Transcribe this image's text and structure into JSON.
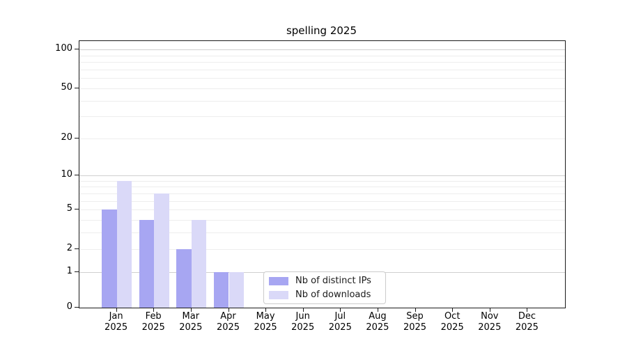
{
  "title": "spelling 2025",
  "legend": {
    "items": [
      {
        "label": "Nb of distinct IPs",
        "color": "#a7a6f2"
      },
      {
        "label": "Nb of downloads",
        "color": "#dad9f8"
      }
    ]
  },
  "colors": {
    "bar_distinct_ips": "#a7a6f2",
    "bar_downloads": "#dad9f8",
    "grid_major": "#d0d0d0",
    "grid_minor": "#ededed",
    "axis": "#1a1a1a",
    "background": "#ffffff"
  },
  "chart_data": {
    "type": "bar",
    "title": "spelling 2025",
    "categories": [
      "Jan",
      "Feb",
      "Mar",
      "Apr",
      "May",
      "Jun",
      "Jul",
      "Aug",
      "Sep",
      "Oct",
      "Nov",
      "Dec"
    ],
    "year_label": "2025",
    "series": [
      {
        "name": "Nb of distinct IPs",
        "color": "#a7a6f2",
        "values": [
          5,
          4,
          2,
          1,
          0,
          0,
          0,
          0,
          0,
          0,
          0,
          0
        ]
      },
      {
        "name": "Nb of downloads",
        "color": "#dad9f8",
        "values": [
          9,
          7,
          4,
          1,
          0,
          0,
          0,
          0,
          0,
          0,
          0,
          0
        ]
      }
    ],
    "xlabel": "",
    "ylabel": "",
    "yscale": "log1p",
    "ylim": [
      0,
      118
    ],
    "ytick_values": [
      0,
      1,
      2,
      5,
      10,
      20,
      50,
      100
    ],
    "ytick_labels": [
      "0",
      "1",
      "2",
      "5",
      "10",
      "20",
      "50",
      "100"
    ],
    "ytick_major_grid": [
      1,
      10,
      100
    ],
    "ytick_minor_grid": [
      2,
      3,
      4,
      5,
      6,
      7,
      8,
      9,
      20,
      30,
      40,
      50,
      60,
      70,
      80,
      90
    ],
    "grid": "horizontal",
    "legend_position": "lower center"
  }
}
